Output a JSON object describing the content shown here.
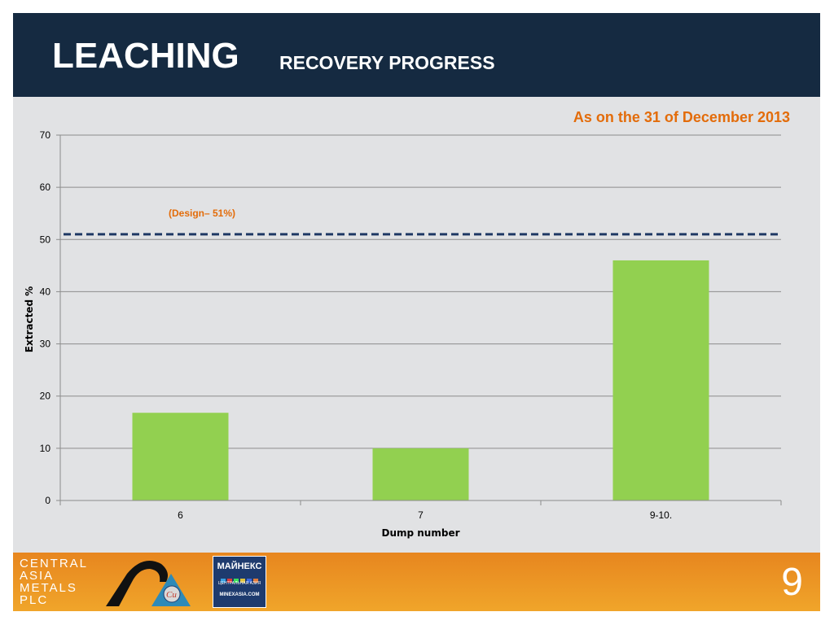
{
  "slide": {
    "title_main": "LEACHING",
    "title_sub": "RECOVERY PROGRESS",
    "date_note": "As on the 31 of December 2013",
    "page_number": "9",
    "colors": {
      "header_bg": "#152a41",
      "panel_bg": "#e1e2e4",
      "accent_orange": "#e36c0a",
      "bar_green": "#92d050",
      "design_line": "#1f3864",
      "footer_orange": "#e98a20"
    }
  },
  "footer": {
    "company_logo_lines": [
      "CENTRAL",
      "ASIA",
      "METALS",
      "PLC"
    ],
    "partner_logo": {
      "name": "МАЙНЕКС",
      "subtitle": "ЦЕНТРАЛЬНАЯ АЗИЯ",
      "url_text": "MINEXASIA.COM"
    },
    "cu_symbol": "Cu"
  },
  "chart_data": {
    "type": "bar",
    "categories": [
      "6",
      "7",
      "9-10."
    ],
    "values": [
      16.8,
      10,
      46
    ],
    "xlabel": "Dump number",
    "ylabel": "Extracted %",
    "ylim": [
      0,
      70
    ],
    "yticks": [
      0,
      10,
      20,
      30,
      40,
      50,
      60,
      70
    ],
    "grid": true,
    "reference_line": {
      "label": "(Design– 51%)",
      "value": 51,
      "style": "dashed"
    }
  }
}
